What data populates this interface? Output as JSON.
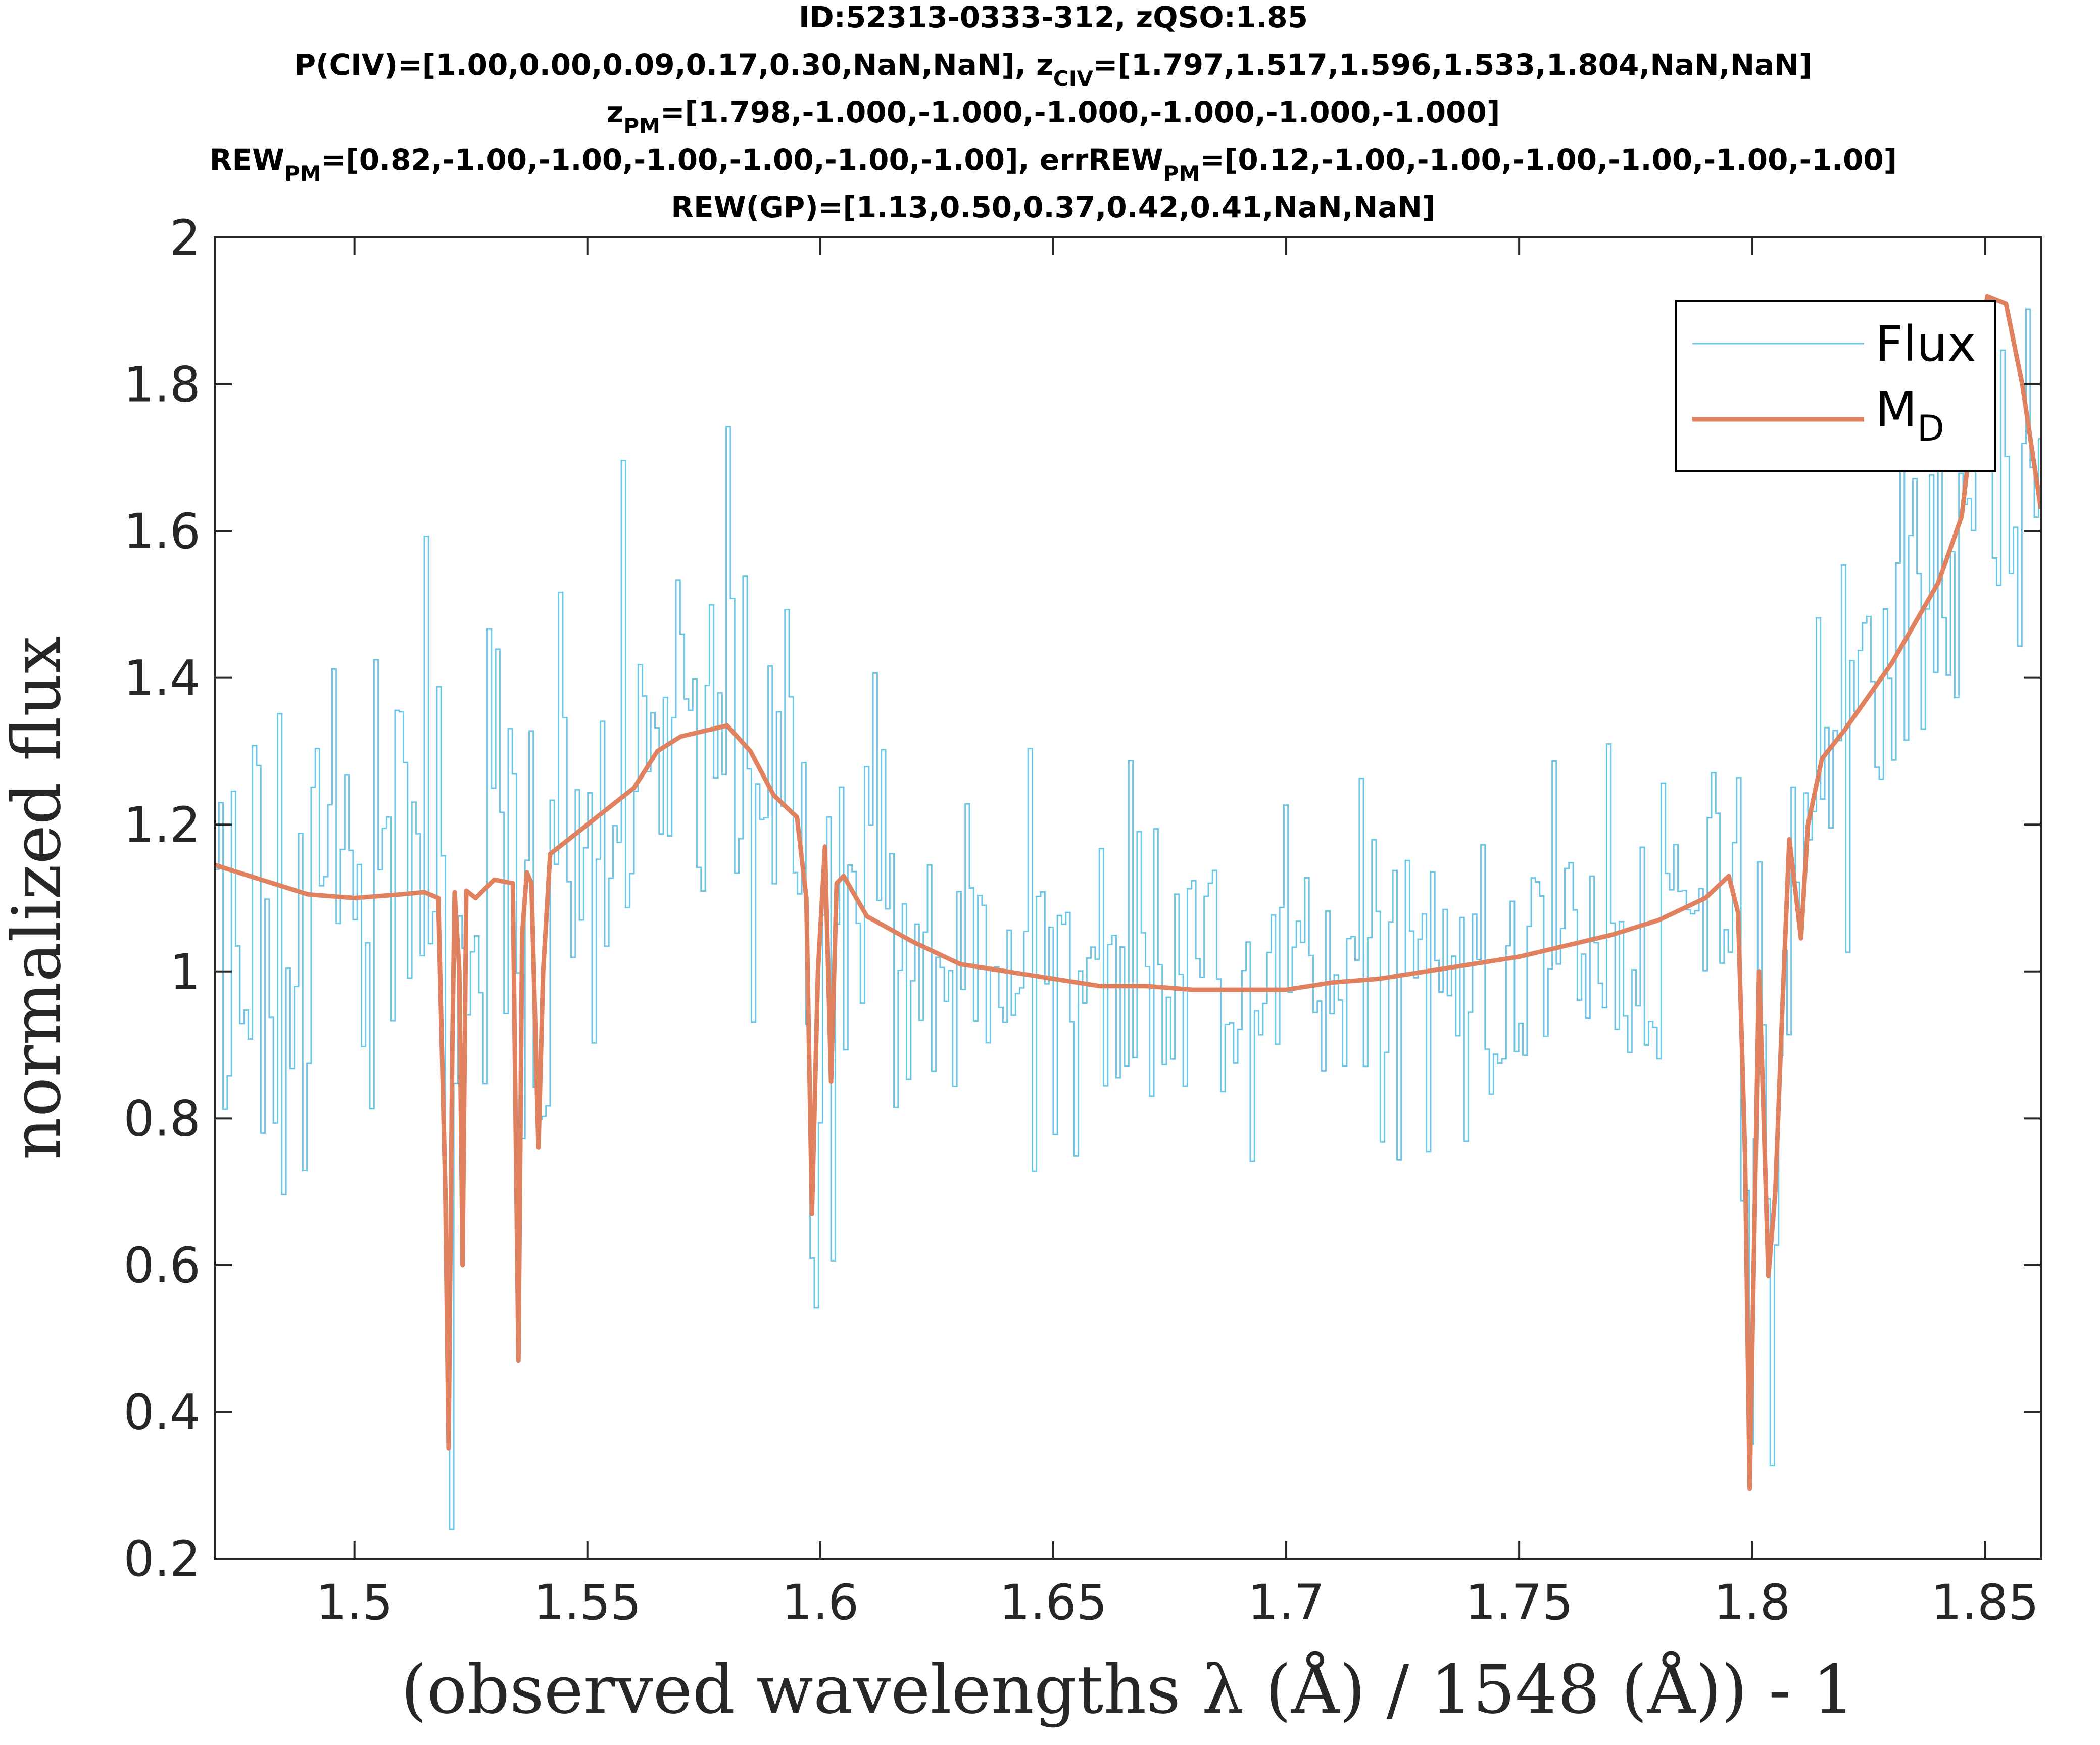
{
  "chart_data": {
    "type": "line",
    "title_lines": [
      {
        "parts": [
          {
            "text": "ID:52313-0333-312, zQSO:1.85"
          }
        ]
      },
      {
        "parts": [
          {
            "text": "P(CIV)=[1.00,0.00,0.09,0.17,0.30,NaN,NaN], z"
          },
          {
            "text": "CIV",
            "sub": true
          },
          {
            "text": "=[1.797,1.517,1.596,1.533,1.804,NaN,NaN]"
          }
        ]
      },
      {
        "parts": [
          {
            "text": "z"
          },
          {
            "text": "PM",
            "sub": true
          },
          {
            "text": "=[1.798,-1.000,-1.000,-1.000,-1.000,-1.000,-1.000]"
          }
        ]
      },
      {
        "parts": [
          {
            "text": "REW"
          },
          {
            "text": "PM",
            "sub": true
          },
          {
            "text": "=[0.82,-1.00,-1.00,-1.00,-1.00,-1.00,-1.00], errREW"
          },
          {
            "text": "PM",
            "sub": true
          },
          {
            "text": "=[0.12,-1.00,-1.00,-1.00,-1.00,-1.00,-1.00]"
          }
        ]
      },
      {
        "parts": [
          {
            "text": "REW(GP)=[1.13,0.50,0.37,0.42,0.41,NaN,NaN]"
          }
        ]
      }
    ],
    "xlabel": "(observed wavelengths λ (Å) / 1548 (Å)) - 1",
    "ylabel": "normalized flux",
    "xlim": [
      1.47,
      1.862
    ],
    "ylim": [
      0.2,
      2.0
    ],
    "xticks": [
      1.5,
      1.55,
      1.6,
      1.65,
      1.7,
      1.75,
      1.8,
      1.85
    ],
    "xtick_labels": [
      "1.5",
      "1.55",
      "1.6",
      "1.65",
      "1.7",
      "1.75",
      "1.8",
      "1.85"
    ],
    "yticks": [
      0.2,
      0.4,
      0.6,
      0.8,
      1.0,
      1.2,
      1.4,
      1.6,
      1.8,
      2.0
    ],
    "ytick_labels": [
      "0.2",
      "0.4",
      "0.6",
      "0.8",
      "1",
      "1.2",
      "1.4",
      "1.6",
      "1.8",
      "2"
    ],
    "grid": false,
    "legend_position": "top-right",
    "series": [
      {
        "name": "Flux",
        "style": "stairs",
        "color": "#6ec6e6",
        "generated": {
          "x_start": 1.47,
          "x_end": 1.862,
          "x_step": 0.0009,
          "seed": 52313,
          "noise_sd": 0.17,
          "noise_decay": 0.06,
          "base_noise": 0.12
        }
      },
      {
        "name": "M",
        "legend_subscript": "D",
        "style": "line",
        "color": "#e0825f",
        "x": [
          1.47,
          1.48,
          1.49,
          1.5,
          1.51,
          1.515,
          1.518,
          1.5195,
          1.5202,
          1.521,
          1.5215,
          1.5225,
          1.5232,
          1.524,
          1.526,
          1.53,
          1.534,
          1.5352,
          1.536,
          1.537,
          1.538,
          1.5395,
          1.5405,
          1.542,
          1.55,
          1.56,
          1.565,
          1.57,
          1.58,
          1.585,
          1.59,
          1.595,
          1.597,
          1.5982,
          1.5995,
          1.601,
          1.6023,
          1.6035,
          1.605,
          1.61,
          1.62,
          1.63,
          1.64,
          1.65,
          1.66,
          1.67,
          1.68,
          1.69,
          1.7,
          1.71,
          1.72,
          1.73,
          1.74,
          1.75,
          1.76,
          1.77,
          1.78,
          1.79,
          1.795,
          1.797,
          1.7985,
          1.7995,
          1.8015,
          1.8025,
          1.8035,
          1.805,
          1.8065,
          1.808,
          1.8095,
          1.8105,
          1.812,
          1.815,
          1.82,
          1.83,
          1.84,
          1.845,
          1.8505,
          1.8545,
          1.858,
          1.862
        ],
        "y": [
          1.145,
          1.125,
          1.105,
          1.1,
          1.105,
          1.108,
          1.1,
          0.7,
          0.35,
          0.9,
          1.108,
          1.0,
          0.6,
          1.11,
          1.1,
          1.125,
          1.12,
          0.47,
          1.05,
          1.135,
          1.12,
          0.76,
          1.0,
          1.16,
          1.2,
          1.25,
          1.3,
          1.32,
          1.335,
          1.3,
          1.24,
          1.21,
          1.1,
          0.67,
          1.0,
          1.17,
          0.85,
          1.12,
          1.13,
          1.075,
          1.04,
          1.01,
          1.0,
          0.99,
          0.98,
          0.98,
          0.975,
          0.975,
          0.975,
          0.985,
          0.99,
          1.0,
          1.01,
          1.02,
          1.035,
          1.05,
          1.07,
          1.1,
          1.13,
          1.08,
          0.75,
          0.295,
          1.0,
          0.8,
          0.585,
          0.7,
          0.95,
          1.18,
          1.1,
          1.045,
          1.2,
          1.29,
          1.33,
          1.42,
          1.53,
          1.62,
          1.92,
          1.91,
          1.8,
          1.63
        ]
      }
    ],
    "flux_anchor_x": [
      1.47,
      1.49,
      1.5,
      1.51,
      1.515,
      1.518,
      1.5195,
      1.5202,
      1.521,
      1.5215,
      1.5225,
      1.5232,
      1.524,
      1.526,
      1.53,
      1.534,
      1.5352,
      1.536,
      1.537,
      1.538,
      1.5395,
      1.5405,
      1.542,
      1.55,
      1.56,
      1.565,
      1.57,
      1.58,
      1.585,
      1.59,
      1.595,
      1.597,
      1.5982,
      1.5995,
      1.601,
      1.6023,
      1.6035,
      1.605,
      1.61,
      1.62,
      1.63,
      1.64,
      1.65,
      1.66,
      1.67,
      1.68,
      1.69,
      1.7,
      1.71,
      1.72,
      1.73,
      1.74,
      1.75,
      1.76,
      1.77,
      1.78,
      1.79,
      1.795,
      1.797,
      1.7985,
      1.7995,
      1.8015,
      1.8025,
      1.8035,
      1.805,
      1.8065,
      1.808,
      1.8095,
      1.8105,
      1.812,
      1.815,
      1.82,
      1.83,
      1.84,
      1.845,
      1.85,
      1.855,
      1.86,
      1.862
    ],
    "flux_anchor_y": [
      1.17,
      1.12,
      1.1,
      1.105,
      1.108,
      1.1,
      0.7,
      0.33,
      0.9,
      1.108,
      1.0,
      0.62,
      1.11,
      1.1,
      1.125,
      1.12,
      0.5,
      1.05,
      1.135,
      1.12,
      0.78,
      1.0,
      1.16,
      1.2,
      1.25,
      1.3,
      1.32,
      1.335,
      1.3,
      1.24,
      1.21,
      1.1,
      0.6,
      1.0,
      1.17,
      0.87,
      1.12,
      1.13,
      1.075,
      1.04,
      1.01,
      1.0,
      0.99,
      0.98,
      0.98,
      0.975,
      0.975,
      0.975,
      0.985,
      0.99,
      1.0,
      1.01,
      1.02,
      1.035,
      1.05,
      1.07,
      1.1,
      1.13,
      1.08,
      0.75,
      0.4,
      1.0,
      0.8,
      0.6,
      0.7,
      0.95,
      1.18,
      1.1,
      1.045,
      1.2,
      1.29,
      1.33,
      1.42,
      1.53,
      1.6,
      1.66,
      1.65,
      1.6,
      1.58
    ]
  }
}
